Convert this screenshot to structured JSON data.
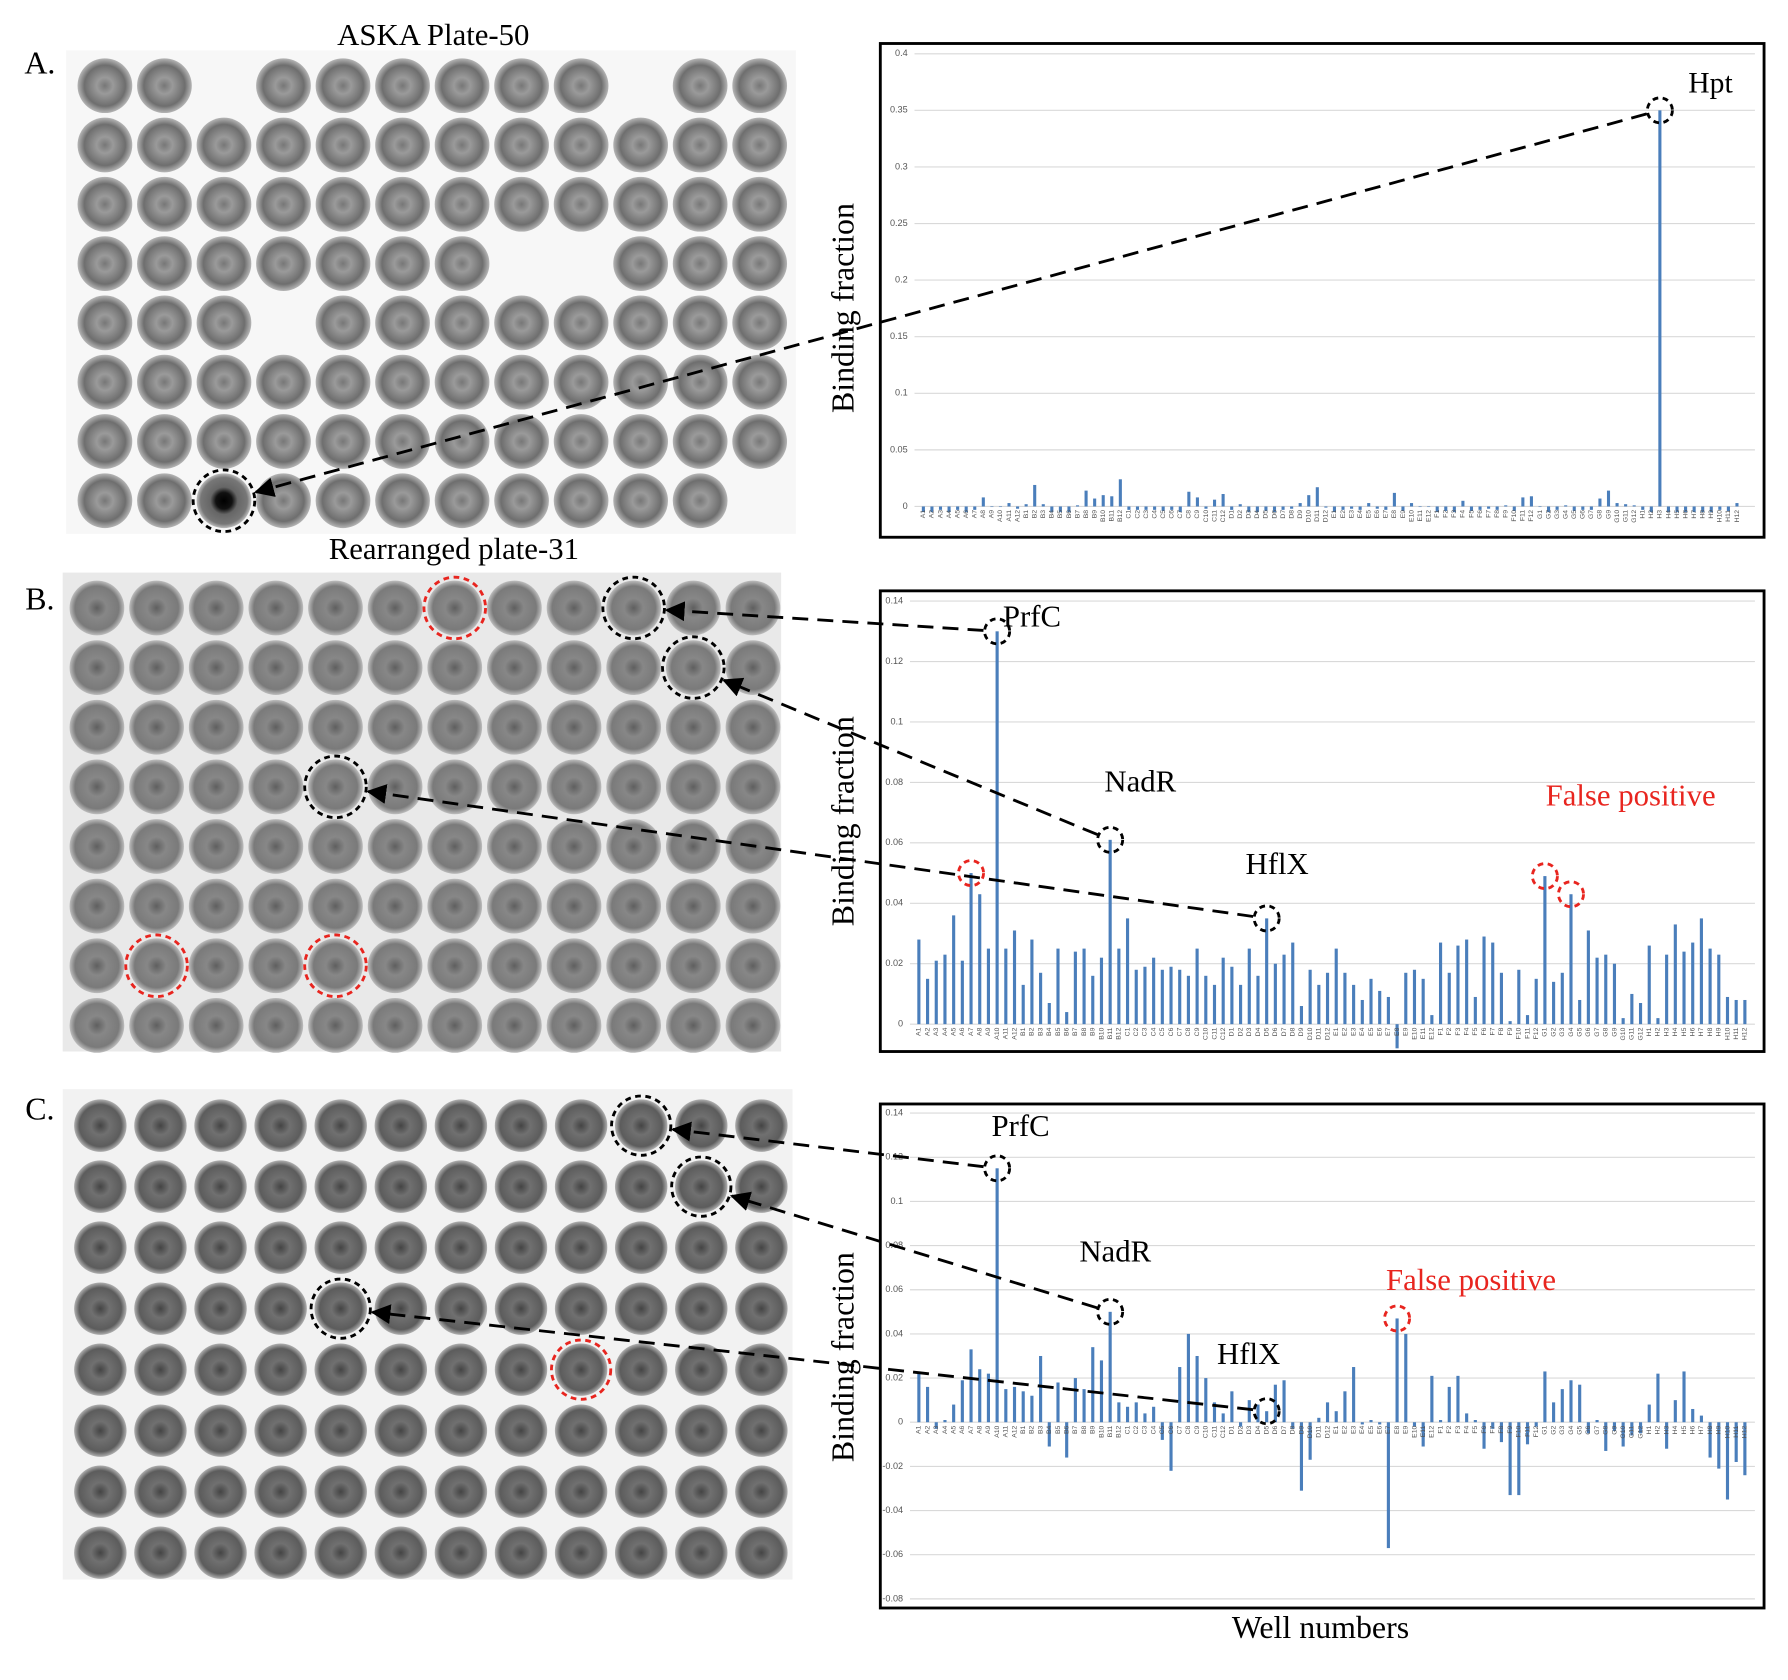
{
  "chart_data": [
    {
      "type": "bar",
      "panel": "A.",
      "plate_title": "ASKA Plate-50",
      "ylabel": "Binding fraction",
      "color": "#4a7ebb",
      "grid": true,
      "categories": [
        "A1",
        "A2",
        "A3",
        "A4",
        "A5",
        "A6",
        "A7",
        "A8",
        "A9",
        "A10",
        "A11",
        "A12",
        "B1",
        "B2",
        "B3",
        "B4",
        "B5",
        "B6",
        "B7",
        "B8",
        "B9",
        "B10",
        "B11",
        "B12",
        "C1",
        "C2",
        "C3",
        "C4",
        "C5",
        "C6",
        "C7",
        "C8",
        "C9",
        "C10",
        "C11",
        "C12",
        "D1",
        "D2",
        "D3",
        "D4",
        "D5",
        "D6",
        "D7",
        "D8",
        "D9",
        "D10",
        "D11",
        "D12",
        "E1",
        "E2",
        "E3",
        "E4",
        "E5",
        "E6",
        "E7",
        "E8",
        "E9",
        "E10",
        "E11",
        "E12",
        "F1",
        "F2",
        "F3",
        "F4",
        "F5",
        "F6",
        "F7",
        "F8",
        "F9",
        "F10",
        "F11",
        "F12",
        "G1",
        "G2",
        "G3",
        "G4",
        "G5",
        "G6",
        "G7",
        "G8",
        "G9",
        "G10",
        "G11",
        "G12",
        "H1",
        "H2",
        "H3",
        "H4",
        "H5",
        "H6",
        "H7",
        "H8",
        "H9",
        "H10",
        "H11",
        "H12"
      ],
      "values": [
        -0.005,
        -0.005,
        -0.003,
        -0.005,
        -0.003,
        -0.005,
        -0.003,
        0.008,
        0,
        0,
        0.003,
        -0.002,
        0.002,
        0.019,
        0.002,
        -0.005,
        -0.005,
        -0.005,
        0.001,
        0.014,
        0.007,
        0.01,
        0.009,
        0.024,
        -0.003,
        -0.003,
        -0.003,
        -0.003,
        -0.004,
        -0.003,
        -0.005,
        0.013,
        0.008,
        -0.002,
        0.006,
        0.011,
        -0.003,
        0.002,
        -0.005,
        -0.005,
        -0.004,
        -0.005,
        -0.003,
        -0.002,
        0.003,
        0.01,
        0.017,
        -0.001,
        -0.005,
        -0.003,
        -0.002,
        -0.003,
        0.003,
        -0.002,
        -0.003,
        0.012,
        -0.004,
        0.003,
        0,
        0,
        -0.005,
        -0.004,
        -0.005,
        0.005,
        -0.004,
        -0.003,
        -0.002,
        -0.003,
        0.001,
        -0.004,
        0.008,
        0.009,
        0,
        -0.005,
        -0.003,
        0.001,
        -0.004,
        -0.003,
        -0.003,
        0.007,
        0.014,
        0.003,
        0.002,
        0.001,
        -0.003,
        -0.005,
        0.35,
        -0.005,
        -0.005,
        -0.005,
        -0.005,
        -0.005,
        -0.005,
        -0.003,
        -0.004,
        0.003
      ],
      "ylim": [
        0,
        0.4
      ],
      "yticks": [
        0,
        0.05,
        0.1,
        0.15,
        0.2,
        0.25,
        0.3,
        0.35,
        0.4
      ],
      "annotations": [
        {
          "text": "Hpt",
          "color": "#000000"
        }
      ]
    },
    {
      "type": "bar",
      "panel": "B.",
      "plate_title": "Rearranged plate-31",
      "ylabel": "Binding fraction",
      "color": "#4a7ebb",
      "grid": true,
      "categories": [
        "A1",
        "A2",
        "A3",
        "A4",
        "A5",
        "A6",
        "A7",
        "A8",
        "A9",
        "A10",
        "A11",
        "A12",
        "B1",
        "B2",
        "B3",
        "B4",
        "B5",
        "B6",
        "B7",
        "B8",
        "B9",
        "B10",
        "B11",
        "B12",
        "C1",
        "C2",
        "C3",
        "C4",
        "C5",
        "C6",
        "C7",
        "C8",
        "C9",
        "C10",
        "C11",
        "C12",
        "D1",
        "D2",
        "D3",
        "D4",
        "D5",
        "D6",
        "D7",
        "D8",
        "D9",
        "D10",
        "D11",
        "D12",
        "E1",
        "E2",
        "E3",
        "E4",
        "E5",
        "E6",
        "E7",
        "E8",
        "E9",
        "E10",
        "E11",
        "E12",
        "F1",
        "F2",
        "F3",
        "F4",
        "F5",
        "F6",
        "F7",
        "F8",
        "F9",
        "F10",
        "F11",
        "F12",
        "G1",
        "G2",
        "G3",
        "G4",
        "G5",
        "G6",
        "G7",
        "G8",
        "G9",
        "G10",
        "G11",
        "G12",
        "H1",
        "H2",
        "H3",
        "H4",
        "H5",
        "H6",
        "H7",
        "H8",
        "H9",
        "H10",
        "H11",
        "H12"
      ],
      "values": [
        0.028,
        0.015,
        0.021,
        0.023,
        0.036,
        0.021,
        0.05,
        0.043,
        0.025,
        0.13,
        0.025,
        0.031,
        0.013,
        0.028,
        0.017,
        0.007,
        0.025,
        0.004,
        0.024,
        0.025,
        0.016,
        0.022,
        0.061,
        0.025,
        0.035,
        0.018,
        0.019,
        0.022,
        0.018,
        0.019,
        0.018,
        0.016,
        0.025,
        0.016,
        0.013,
        0.022,
        0.019,
        0.013,
        0.025,
        0.016,
        0.035,
        0.02,
        0.023,
        0.027,
        0.006,
        0.018,
        0.013,
        0.017,
        0.025,
        0.017,
        0.013,
        0.008,
        0.015,
        0.011,
        0.009,
        -0.008,
        0.017,
        0.018,
        0.015,
        0.003,
        0.027,
        0.017,
        0.026,
        0.028,
        0.009,
        0.029,
        0.027,
        0.017,
        0.001,
        0.018,
        0.003,
        0.015,
        0.049,
        0.014,
        0.017,
        0.043,
        0.008,
        0.031,
        0.022,
        0.023,
        0.02,
        0.002,
        0.01,
        0.007,
        0.026,
        0.002,
        0.023,
        0.033,
        0.024,
        0.027,
        0.035,
        0.025,
        0.023,
        0.009,
        0.008,
        0.008
      ],
      "ylim": [
        0,
        0.14
      ],
      "yticks": [
        0,
        0.02,
        0.04,
        0.06,
        0.08,
        0.1,
        0.12,
        0.14
      ],
      "annotations": [
        {
          "text": "PrfC",
          "color": "#000000"
        },
        {
          "text": "NadR",
          "color": "#000000"
        },
        {
          "text": "HflX",
          "color": "#000000"
        },
        {
          "text": "False positive",
          "color": "#e8251f"
        }
      ]
    },
    {
      "type": "bar",
      "panel": "C.",
      "ylabel": "Binding fraction",
      "xlabel": "Well numbers",
      "color": "#4a7ebb",
      "grid": true,
      "categories": [
        "A1",
        "A2",
        "A3",
        "A4",
        "A5",
        "A6",
        "A7",
        "A8",
        "A9",
        "A10",
        "A11",
        "A12",
        "B1",
        "B2",
        "B3",
        "B4",
        "B5",
        "B6",
        "B7",
        "B8",
        "B9",
        "B10",
        "B11",
        "B12",
        "C1",
        "C2",
        "C3",
        "C4",
        "C5",
        "C6",
        "C7",
        "C8",
        "C9",
        "C10",
        "C11",
        "C12",
        "D1",
        "D2",
        "D3",
        "D4",
        "D5",
        "D6",
        "D7",
        "D8",
        "D9",
        "D10",
        "D11",
        "D12",
        "E1",
        "E2",
        "E3",
        "E4",
        "E5",
        "E6",
        "E7",
        "E8",
        "E9",
        "E10",
        "E11",
        "E12",
        "F1",
        "F2",
        "F3",
        "F4",
        "F5",
        "F6",
        "F7",
        "F8",
        "F9",
        "F10",
        "F11",
        "F12",
        "G1",
        "G2",
        "G3",
        "G4",
        "G5",
        "G6",
        "G7",
        "G8",
        "G9",
        "G10",
        "G11",
        "G12",
        "H1",
        "H2",
        "H3",
        "H4",
        "H5",
        "H6",
        "H7",
        "H8",
        "H9",
        "H10",
        "H11",
        "H12"
      ],
      "values": [
        0.023,
        0.016,
        -0.003,
        0.001,
        0.008,
        0.019,
        0.033,
        0.024,
        0.022,
        0.115,
        0.015,
        0.016,
        0.014,
        0.012,
        0.03,
        -0.011,
        0.018,
        -0.016,
        0.02,
        0.015,
        0.034,
        0.028,
        0.05,
        0.009,
        0.007,
        0.009,
        0.004,
        0.007,
        -0.008,
        -0.022,
        0.025,
        0.04,
        0.03,
        0.02,
        0.009,
        0.004,
        0.014,
        -0.002,
        0.01,
        0.008,
        0.005,
        0.017,
        0.019,
        -0.003,
        -0.031,
        -0.017,
        0.002,
        0.009,
        0.005,
        0.014,
        0.025,
        -0.001,
        0.001,
        -0.001,
        -0.057,
        0.047,
        0.04,
        -0.002,
        -0.011,
        0.021,
        0.001,
        0.016,
        0.021,
        0.004,
        0.001,
        -0.012,
        -0.003,
        -0.009,
        -0.033,
        -0.033,
        -0.01,
        -0.002,
        0.023,
        0.009,
        0.015,
        0.019,
        0.017,
        -0.005,
        0.001,
        -0.013,
        -0.004,
        -0.011,
        -0.006,
        -0.005,
        0.008,
        0.022,
        -0.012,
        0.01,
        0.023,
        0.006,
        0.003,
        -0.016,
        -0.021,
        -0.035,
        -0.018,
        -0.024
      ],
      "ylim": [
        -0.08,
        0.14
      ],
      "yticks": [
        -0.08,
        -0.06,
        -0.04,
        -0.02,
        0,
        0.02,
        0.04,
        0.06,
        0.08,
        0.1,
        0.12,
        0.14
      ],
      "annotations": [
        {
          "text": "PrfC",
          "color": "#000000"
        },
        {
          "text": "NadR",
          "color": "#000000"
        },
        {
          "text": "HflX",
          "color": "#000000"
        },
        {
          "text": "False positive",
          "color": "#e8251f"
        }
      ]
    }
  ]
}
